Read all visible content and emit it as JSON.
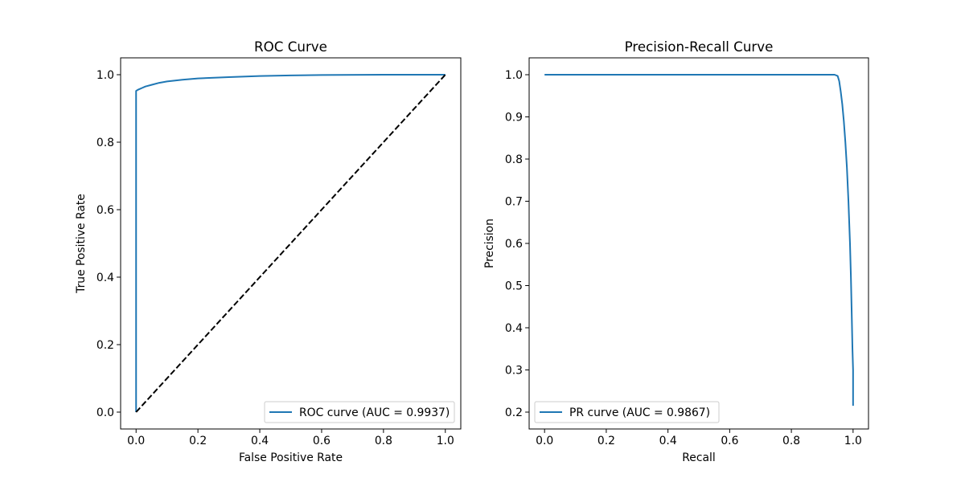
{
  "chart_data": [
    {
      "type": "line",
      "title": "ROC Curve",
      "xlabel": "False Positive Rate",
      "ylabel": "True Positive Rate",
      "xlim": [
        -0.05,
        1.05
      ],
      "ylim": [
        -0.05,
        1.05
      ],
      "xticks": [
        0.0,
        0.2,
        0.4,
        0.6,
        0.8,
        1.0
      ],
      "yticks": [
        0.0,
        0.2,
        0.4,
        0.6,
        0.8,
        1.0
      ],
      "tick_format": "0.0",
      "grid": false,
      "legend_position": "lower right",
      "series": [
        {
          "name": "ROC curve (AUC = 0.9937)",
          "color": "#1f77b4",
          "style": "solid",
          "x": [
            0.0,
            0.0,
            0.0,
            0.005,
            0.01,
            0.02,
            0.03,
            0.05,
            0.075,
            0.1,
            0.15,
            0.2,
            0.3,
            0.4,
            0.5,
            0.6,
            0.8,
            1.0
          ],
          "y": [
            0.0,
            0.94,
            0.952,
            0.955,
            0.957,
            0.961,
            0.965,
            0.97,
            0.976,
            0.98,
            0.985,
            0.989,
            0.993,
            0.996,
            0.998,
            0.999,
            1.0,
            1.0
          ]
        },
        {
          "color": "#000000",
          "style": "dashed",
          "x": [
            0.0,
            1.0
          ],
          "y": [
            0.0,
            1.0
          ]
        }
      ]
    },
    {
      "type": "line",
      "title": "Precision-Recall Curve",
      "xlabel": "Recall",
      "ylabel": "Precision",
      "xlim": [
        -0.05,
        1.05
      ],
      "ylim": [
        0.16,
        1.04
      ],
      "xticks": [
        0.0,
        0.2,
        0.4,
        0.6,
        0.8,
        1.0
      ],
      "yticks": [
        0.2,
        0.3,
        0.4,
        0.5,
        0.6,
        0.7,
        0.8,
        0.9,
        1.0
      ],
      "tick_format": "0.0",
      "grid": false,
      "legend_position": "lower left",
      "series": [
        {
          "name": "PR curve (AUC = 0.9867)",
          "color": "#1f77b4",
          "style": "solid",
          "x": [
            0.0,
            0.9,
            0.94,
            0.95,
            0.955,
            0.96,
            0.965,
            0.97,
            0.975,
            0.98,
            0.985,
            0.99,
            0.993,
            0.996,
            0.998,
            1.0,
            1.0
          ],
          "y": [
            1.0,
            1.0,
            1.0,
            0.997,
            0.985,
            0.96,
            0.93,
            0.89,
            0.84,
            0.78,
            0.7,
            0.6,
            0.52,
            0.42,
            0.35,
            0.3,
            0.215
          ]
        }
      ]
    }
  ]
}
